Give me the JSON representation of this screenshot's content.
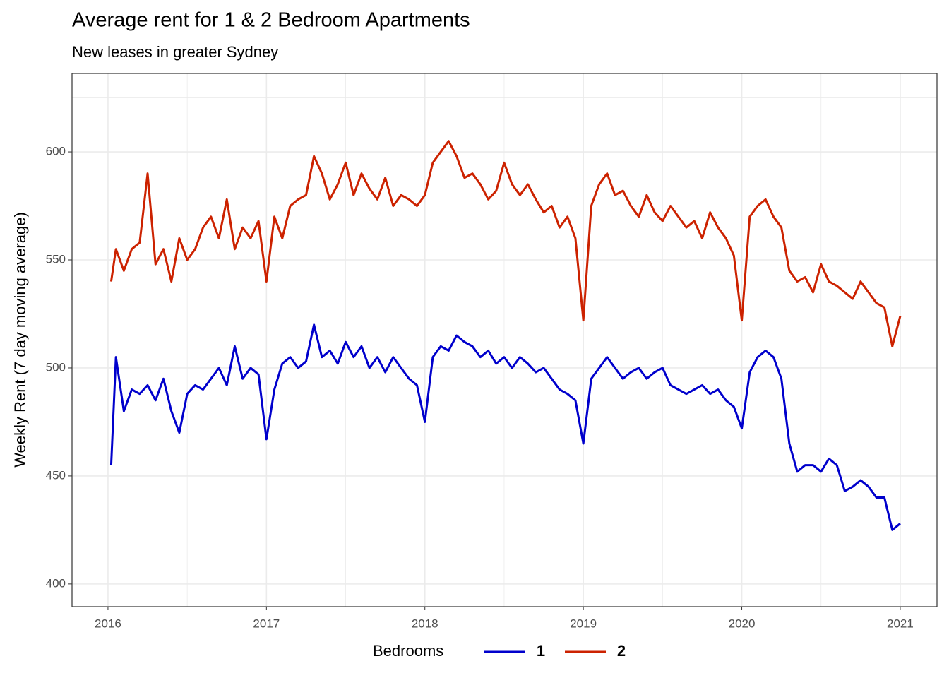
{
  "chart_data": {
    "type": "line",
    "title": "Average rent for 1 & 2 Bedroom Apartments",
    "subtitle": "New leases in greater Sydney",
    "y_label": "Weekly Rent (7 day moving average)",
    "legend_title": "Bedrooms",
    "legend_position": "bottom",
    "grid": true,
    "xlim": [
      2015.773,
      2021.232
    ],
    "xticks": [
      2016,
      2017,
      2018,
      2019,
      2020,
      2021
    ],
    "ylim": [
      389.5,
      636.3
    ],
    "yticks": [
      400,
      450,
      500,
      550,
      600
    ],
    "x": [
      2016.02,
      2016.05,
      2016.1,
      2016.15,
      2016.2,
      2016.25,
      2016.3,
      2016.35,
      2016.4,
      2016.45,
      2016.5,
      2016.55,
      2016.6,
      2016.65,
      2016.7,
      2016.75,
      2016.8,
      2016.85,
      2016.9,
      2016.95,
      2017,
      2017.05,
      2017.1,
      2017.15,
      2017.2,
      2017.25,
      2017.3,
      2017.35,
      2017.4,
      2017.45,
      2017.5,
      2017.55,
      2017.6,
      2017.65,
      2017.7,
      2017.75,
      2017.8,
      2017.85,
      2017.9,
      2017.95,
      2018,
      2018.05,
      2018.1,
      2018.15,
      2018.2,
      2018.25,
      2018.3,
      2018.35,
      2018.4,
      2018.45,
      2018.5,
      2018.55,
      2018.6,
      2018.65,
      2018.7,
      2018.75,
      2018.8,
      2018.85,
      2018.9,
      2018.95,
      2019,
      2019.05,
      2019.1,
      2019.15,
      2019.2,
      2019.25,
      2019.3,
      2019.35,
      2019.4,
      2019.45,
      2019.5,
      2019.55,
      2019.6,
      2019.65,
      2019.7,
      2019.75,
      2019.8,
      2019.85,
      2019.9,
      2019.95,
      2020,
      2020.05,
      2020.1,
      2020.15,
      2020.2,
      2020.25,
      2020.3,
      2020.35,
      2020.4,
      2020.45,
      2020.5,
      2020.55,
      2020.6,
      2020.65,
      2020.7,
      2020.75,
      2020.8,
      2020.85,
      2020.9,
      2020.95,
      2021
    ],
    "series": [
      {
        "name": "1",
        "color": "#0000cc",
        "values": [
          455,
          505,
          480,
          490,
          488,
          492,
          485,
          495,
          480,
          470,
          488,
          492,
          490,
          495,
          500,
          492,
          510,
          495,
          500,
          497,
          467,
          490,
          502,
          505,
          500,
          503,
          520,
          505,
          508,
          502,
          512,
          505,
          510,
          500,
          505,
          498,
          505,
          500,
          495,
          492,
          475,
          505,
          510,
          508,
          515,
          512,
          510,
          505,
          508,
          502,
          505,
          500,
          505,
          502,
          498,
          500,
          495,
          490,
          488,
          485,
          465,
          495,
          500,
          505,
          500,
          495,
          498,
          500,
          495,
          498,
          500,
          492,
          490,
          488,
          490,
          492,
          488,
          490,
          485,
          482,
          472,
          498,
          505,
          508,
          505,
          495,
          465,
          452,
          455,
          455,
          452,
          458,
          455,
          443,
          445,
          448,
          445,
          440,
          440,
          425,
          428
        ]
      },
      {
        "name": "2",
        "color": "#cc2200",
        "values": [
          540,
          555,
          545,
          555,
          558,
          590,
          548,
          555,
          540,
          560,
          550,
          555,
          565,
          570,
          560,
          578,
          555,
          565,
          560,
          568,
          540,
          570,
          560,
          575,
          578,
          580,
          598,
          590,
          578,
          585,
          595,
          580,
          590,
          583,
          578,
          588,
          575,
          580,
          578,
          575,
          580,
          595,
          600,
          605,
          598,
          588,
          590,
          585,
          578,
          582,
          595,
          585,
          580,
          585,
          578,
          572,
          575,
          565,
          570,
          560,
          522,
          575,
          585,
          590,
          580,
          582,
          575,
          570,
          580,
          572,
          568,
          575,
          570,
          565,
          568,
          560,
          572,
          565,
          560,
          552,
          522,
          570,
          575,
          578,
          570,
          565,
          545,
          540,
          542,
          535,
          548,
          540,
          538,
          535,
          532,
          540,
          535,
          530,
          528,
          510,
          524
        ]
      }
    ]
  }
}
